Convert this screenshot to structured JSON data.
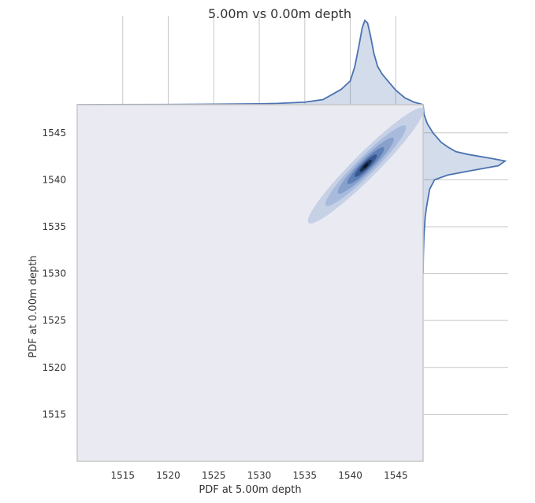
{
  "chart_data": {
    "type": "kde_joint",
    "title": "5.00m vs 0.00m depth",
    "xlabel": "PDF at 5.00m depth",
    "ylabel": "PDF at 0.00m depth",
    "xlim": [
      1510,
      1548
    ],
    "ylim": [
      1510,
      1548
    ],
    "xticks": [
      "1515",
      "1520",
      "1525",
      "1530",
      "1535",
      "1540",
      "1545"
    ],
    "yticks": [
      "1515",
      "1520",
      "1525",
      "1530",
      "1535",
      "1540",
      "1545"
    ],
    "joint_density": {
      "center": [
        1541.7,
        1541.5
      ],
      "major_axis_angle_deg": 45,
      "levels": [
        {
          "level": 1,
          "rx": 8.9,
          "ry": 1.35,
          "color": "#c6d1e6"
        },
        {
          "level": 2,
          "rx": 6.2,
          "ry": 1.0,
          "color": "#a9bbdc"
        },
        {
          "level": 3,
          "rx": 4.3,
          "ry": 0.75,
          "color": "#87a0cc"
        },
        {
          "level": 4,
          "rx": 2.8,
          "ry": 0.55,
          "color": "#5f7fb7"
        },
        {
          "level": 5,
          "rx": 1.7,
          "ry": 0.38,
          "color": "#38598f"
        },
        {
          "level": 6,
          "rx": 0.9,
          "ry": 0.24,
          "color": "#1c2f52"
        },
        {
          "level": 7,
          "rx": 0.35,
          "ry": 0.12,
          "color": "#0a1220"
        }
      ]
    },
    "marginal_x": {
      "x": [
        1510,
        1520,
        1525,
        1530,
        1532,
        1535,
        1537,
        1538,
        1539,
        1540,
        1540.5,
        1541,
        1541.3,
        1541.6,
        1541.9,
        1542.2,
        1542.6,
        1543,
        1543.5,
        1544.2,
        1545,
        1546,
        1547,
        1548
      ],
      "density": [
        0.0,
        0.002,
        0.005,
        0.01,
        0.015,
        0.03,
        0.06,
        0.12,
        0.18,
        0.28,
        0.45,
        0.72,
        0.9,
        0.99,
        0.96,
        0.82,
        0.6,
        0.45,
        0.36,
        0.27,
        0.17,
        0.08,
        0.03,
        0.0
      ]
    },
    "marginal_y": {
      "y": [
        1530,
        1532,
        1534,
        1536,
        1537,
        1538,
        1539,
        1540,
        1540.5,
        1541,
        1541.5,
        1542,
        1542.3,
        1542.7,
        1543,
        1543.5,
        1544,
        1545,
        1546,
        1547,
        1548
      ],
      "density": [
        0.0,
        0.003,
        0.01,
        0.025,
        0.04,
        0.06,
        0.08,
        0.14,
        0.3,
        0.6,
        0.92,
        1.0,
        0.82,
        0.55,
        0.4,
        0.3,
        0.22,
        0.12,
        0.05,
        0.01,
        0.0
      ]
    },
    "colors": {
      "line": "#4c72b0",
      "fill": "#4c72b0",
      "panel": "#eaeaf2",
      "grid": "#c7c7c7",
      "frame": "#c8c8c8"
    },
    "grid": true
  }
}
